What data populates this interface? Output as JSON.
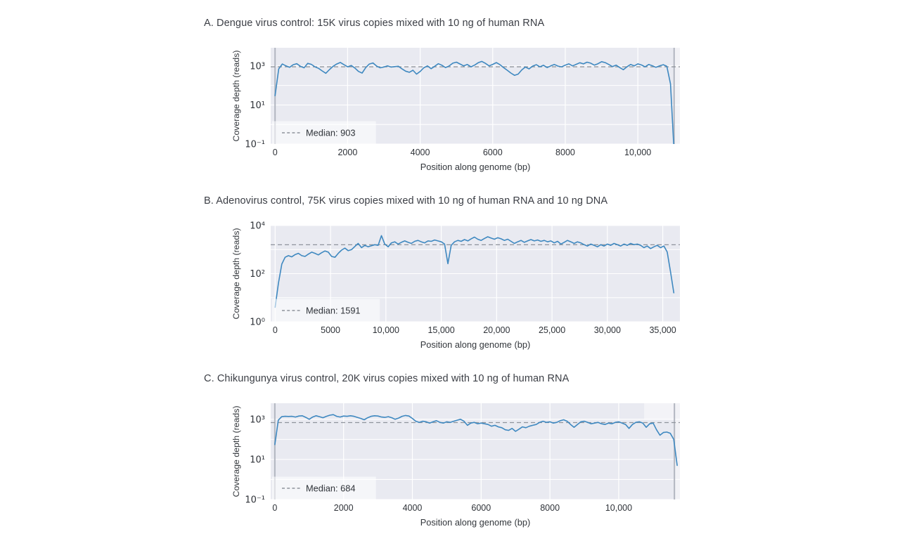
{
  "figure": {
    "background": "#ffffff",
    "colors": {
      "plot_bg": "#e9eaf1",
      "grid": "#ffffff",
      "line": "#3e88c0",
      "median_line": "#8f949c",
      "boundary": "#b2b6c0",
      "legend_bg": "rgba(255,255,255,0.55)",
      "band": "rgba(255,255,255,0.40)",
      "highlight": "rgba(255,255,255,0.45)",
      "title_text": "#3b3e45",
      "tick_text": "#2e3238",
      "axis_text": "#33373c"
    }
  },
  "chart_data": [
    {
      "id": "dengue",
      "type": "line",
      "title": "A. Dengue virus control: 15K virus copies mixed with 10 ng of human RNA",
      "xlabel": "Position along genome (bp)",
      "ylabel": "Coverage depth (reads)",
      "legend_label": "Median: 903",
      "median": 903,
      "yscale": "log",
      "ylim": [
        0.1,
        8500
      ],
      "xlim": [
        -120,
        11160
      ],
      "genome_start": 0,
      "genome_end": 11000,
      "genome_bounds_visible": true,
      "y_ticks": [
        {
          "value": 1000,
          "label": "10³"
        },
        {
          "value": 10,
          "label": "10¹"
        },
        {
          "value": 0.1,
          "label": "10⁻¹"
        }
      ],
      "x_ticks": [
        {
          "value": 0,
          "label": "0"
        },
        {
          "value": 2000,
          "label": "2000"
        },
        {
          "value": 4000,
          "label": "4000"
        },
        {
          "value": 6000,
          "label": "6000"
        },
        {
          "value": 8000,
          "label": "8000"
        },
        {
          "value": 10000,
          "label": "10,000"
        }
      ],
      "series": {
        "name": "coverage-depth",
        "x_start": 0,
        "x_step": 100,
        "values": [
          30,
          700,
          1250,
          1000,
          850,
          1150,
          1300,
          950,
          800,
          1350,
          1200,
          900,
          750,
          550,
          420,
          650,
          950,
          1250,
          1500,
          1150,
          900,
          1050,
          780,
          520,
          430,
          820,
          1250,
          1420,
          980,
          800,
          880,
          1000,
          870,
          920,
          960,
          700,
          540,
          470,
          600,
          380,
          520,
          800,
          1000,
          720,
          950,
          1300,
          1080,
          820,
          1000,
          1380,
          1550,
          1250,
          1000,
          1180,
          900,
          1100,
          1450,
          1700,
          1350,
          1000,
          1200,
          1480,
          1150,
          820,
          600,
          430,
          330,
          380,
          620,
          880,
          700,
          980,
          1150,
          900,
          1080,
          820,
          1000,
          1180,
          980,
          900,
          1100,
          1280,
          1000,
          1200,
          1450,
          1280,
          1550,
          1380,
          1100,
          1300,
          1650,
          1480,
          1180,
          920,
          1100,
          820,
          640,
          900,
          1180,
          1000,
          1280,
          1120,
          900,
          1180,
          1020,
          850,
          1000,
          1150,
          950,
          120,
          0.04
        ]
      }
    },
    {
      "id": "adenovirus",
      "type": "line",
      "title": "B. Adenovirus control, 75K virus copies mixed with 10 ng of human RNA and 10 ng DNA",
      "xlabel": "Position along genome (bp)",
      "ylabel": "Coverage depth (reads)",
      "legend_label": "Median: 1591",
      "median": 1591,
      "yscale": "log",
      "ylim": [
        1,
        10000
      ],
      "xlim": [
        -400,
        36550
      ],
      "genome_start": 0,
      "genome_end": 36000,
      "genome_bounds_visible": false,
      "y_ticks": [
        {
          "value": 10000,
          "label": "10⁴"
        },
        {
          "value": 100,
          "label": "10²"
        },
        {
          "value": 1,
          "label": "10⁰"
        }
      ],
      "x_ticks": [
        {
          "value": 0,
          "label": "0"
        },
        {
          "value": 5000,
          "label": "5000"
        },
        {
          "value": 10000,
          "label": "10,000"
        },
        {
          "value": 15000,
          "label": "15,000"
        },
        {
          "value": 20000,
          "label": "20,000"
        },
        {
          "value": 25000,
          "label": "25,000"
        },
        {
          "value": 30000,
          "label": "30,000"
        },
        {
          "value": 35000,
          "label": "35,000"
        }
      ],
      "series": {
        "name": "coverage-depth",
        "x_start": 0,
        "x_step": 300,
        "values": [
          4,
          40,
          250,
          480,
          560,
          500,
          620,
          700,
          560,
          520,
          650,
          780,
          700,
          600,
          740,
          880,
          780,
          520,
          480,
          700,
          950,
          1150,
          900,
          1000,
          1350,
          1800,
          1200,
          1500,
          1300,
          1450,
          1600,
          1500,
          3800,
          1700,
          1300,
          1900,
          2100,
          1700,
          2000,
          2300,
          2000,
          1800,
          2200,
          2400,
          2100,
          1900,
          2300,
          2200,
          2500,
          2300,
          2100,
          1700,
          260,
          1500,
          2100,
          2400,
          2200,
          2600,
          2300,
          2800,
          3300,
          2700,
          2400,
          2900,
          3400,
          3000,
          2700,
          3100,
          2800,
          2400,
          2700,
          2200,
          1800,
          2100,
          2400,
          2000,
          2300,
          2600,
          2300,
          2500,
          2200,
          2400,
          2100,
          2300,
          1900,
          2200,
          1700,
          2000,
          2400,
          2100,
          1800,
          2100,
          1900,
          1600,
          1400,
          1700,
          1500,
          1300,
          1600,
          1400,
          1700,
          1500,
          1800,
          1600,
          1400,
          1700,
          1500,
          1800,
          1600,
          1700,
          1500,
          1200,
          1400,
          1100,
          1300,
          1500,
          1200,
          1400,
          800,
          120,
          16
        ]
      }
    },
    {
      "id": "chikungunya",
      "type": "line",
      "title": "C. Chikungunya virus control, 20K virus copies mixed with 10 ng of human RNA",
      "xlabel": "Position along genome (bp)",
      "ylabel": "Coverage depth (reads)",
      "legend_label": "Median: 684",
      "median": 684,
      "yscale": "log",
      "ylim": [
        0.1,
        6300
      ],
      "xlim": [
        -120,
        11780
      ],
      "genome_start": 0,
      "genome_end": 11620,
      "genome_bounds_visible": true,
      "highlight_box": {
        "x": [
          10740,
          11620
        ],
        "y": [
          950,
          6300
        ]
      },
      "y_ticks": [
        {
          "value": 1000,
          "label": "10³"
        },
        {
          "value": 10,
          "label": "10¹"
        },
        {
          "value": 0.1,
          "label": "10⁻¹"
        }
      ],
      "x_ticks": [
        {
          "value": 0,
          "label": "0"
        },
        {
          "value": 2000,
          "label": "2000"
        },
        {
          "value": 4000,
          "label": "4000"
        },
        {
          "value": 6000,
          "label": "6000"
        },
        {
          "value": 8000,
          "label": "8000"
        },
        {
          "value": 10000,
          "label": "10,000"
        }
      ],
      "series": {
        "name": "coverage-depth",
        "x_start": 0,
        "x_step": 100,
        "values": [
          55,
          900,
          1350,
          1400,
          1380,
          1400,
          1300,
          1450,
          1500,
          1250,
          1000,
          1300,
          1500,
          1350,
          1200,
          1400,
          1600,
          1700,
          1400,
          1300,
          1450,
          1400,
          1500,
          1400,
          1250,
          1100,
          950,
          1200,
          1400,
          1500,
          1450,
          1300,
          1250,
          1350,
          1200,
          1000,
          1150,
          1400,
          1550,
          1450,
          1100,
          800,
          700,
          800,
          750,
          650,
          750,
          850,
          700,
          650,
          750,
          700,
          800,
          900,
          1000,
          800,
          500,
          650,
          700,
          600,
          650,
          600,
          550,
          450,
          500,
          420,
          380,
          300,
          280,
          350,
          250,
          320,
          420,
          380,
          450,
          500,
          550,
          700,
          800,
          700,
          750,
          650,
          700,
          850,
          950,
          800,
          550,
          400,
          550,
          750,
          800,
          700,
          600,
          650,
          700,
          600,
          550,
          650,
          600,
          700,
          750,
          650,
          550,
          350,
          550,
          700,
          750,
          650,
          400,
          600,
          650,
          300,
          160,
          220,
          230,
          200,
          100,
          5
        ]
      }
    }
  ]
}
